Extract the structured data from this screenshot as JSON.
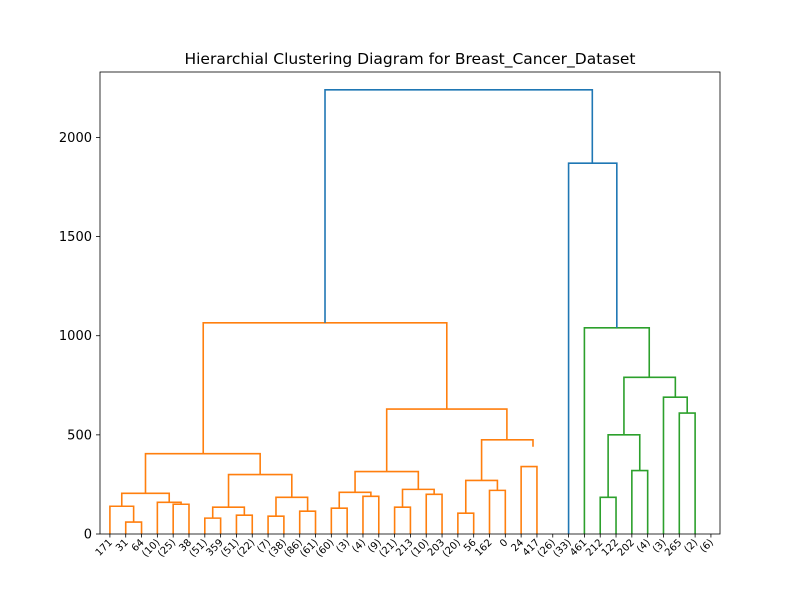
{
  "chart_data": {
    "type": "dendrogram",
    "title": "Hierarchial Clustering Diagram for Breast_Cancer_Dataset",
    "xlabel": "",
    "ylabel": "",
    "ylim": [
      0,
      2330
    ],
    "yticks": [
      0,
      500,
      1000,
      1500,
      2000
    ],
    "grid": false,
    "colors": {
      "cluster_1": "#ff7f0e",
      "cluster_2": "#2ca02c",
      "above_threshold": "#1f77b4"
    },
    "leaves": [
      "171",
      "31",
      "64",
      "(10)",
      "(25)",
      "38",
      "(51)",
      "359",
      "(51)",
      "(22)",
      "(7)",
      "(38)",
      "(86)",
      "(61)",
      "(60)",
      "(3)",
      "(4)",
      "(9)",
      "(21)",
      "213",
      "(10)",
      "203",
      "(20)",
      "56",
      "162",
      "0",
      "24",
      "417",
      "(26)",
      "(33)",
      "461",
      "212",
      "122",
      "202",
      "(4)",
      "(3)",
      "265",
      "(2)",
      "(6)"
    ],
    "links": [
      {
        "x": [
          0,
          1,
          1
        ],
        "left_h": 0,
        "right_h": 0,
        "h": 140,
        "c": "cluster_1"
      },
      {
        "x": [
          1,
          2
        ],
        "left_h": 0,
        "right_h": 0,
        "h": 60,
        "c": "cluster_1",
        "pair": true
      },
      {
        "x": [
          3,
          4
        ],
        "left_h": 0,
        "right_h": 0,
        "h": 125,
        "c": "cluster_1",
        "pair": true
      },
      {
        "x": [
          4,
          5
        ],
        "left_h": 0,
        "right_h": 0,
        "h": 150,
        "c": "cluster_1",
        "pair": true
      }
    ],
    "merges": [
      {
        "l": 1,
        "r": 2,
        "lh": 0,
        "rh": 0,
        "h": 60,
        "c": "cluster_1"
      },
      {
        "l": 0,
        "r": 1.5,
        "lh": 0,
        "rh": 60,
        "h": 140,
        "c": "cluster_1"
      },
      {
        "l": 3,
        "r": 4.5,
        "lh": 0,
        "rh": 0,
        "h": 125,
        "c": "cluster_1",
        "skip": true
      },
      {
        "l": 4,
        "r": 5,
        "lh": 0,
        "rh": 0,
        "h": 150,
        "c": "cluster_1"
      },
      {
        "l": 3,
        "r": 4.5,
        "lh": 0,
        "rh": 150,
        "h": 160,
        "c": "cluster_1"
      },
      {
        "l": 0.75,
        "r": 3.75,
        "lh": 140,
        "rh": 160,
        "h": 205,
        "c": "cluster_1"
      },
      {
        "l": 6,
        "r": 7,
        "lh": 0,
        "rh": 0,
        "h": 80,
        "c": "cluster_1"
      },
      {
        "l": 8,
        "r": 9,
        "lh": 0,
        "rh": 0,
        "h": 95,
        "c": "cluster_1"
      },
      {
        "l": 6.5,
        "r": 8.5,
        "lh": 80,
        "rh": 95,
        "h": 135,
        "c": "cluster_1"
      },
      {
        "l": 10,
        "r": 11,
        "lh": 0,
        "rh": 0,
        "h": 90,
        "c": "cluster_1"
      },
      {
        "l": 12,
        "r": 13,
        "lh": 0,
        "rh": 0,
        "h": 115,
        "c": "cluster_1"
      },
      {
        "l": 10.5,
        "r": 12.5,
        "lh": 90,
        "rh": 115,
        "h": 185,
        "c": "cluster_1"
      },
      {
        "l": 7.5,
        "r": 11.5,
        "lh": 135,
        "rh": 185,
        "h": 300,
        "c": "cluster_1"
      },
      {
        "l": 2.25,
        "r": 9.5,
        "lh": 205,
        "rh": 300,
        "h": 405,
        "c": "cluster_1"
      },
      {
        "l": 14,
        "r": 15,
        "lh": 0,
        "rh": 0,
        "h": 130,
        "c": "cluster_1"
      },
      {
        "l": 16,
        "r": 17,
        "lh": 0,
        "rh": 0,
        "h": 190,
        "c": "cluster_1"
      },
      {
        "l": 14.5,
        "r": 16.5,
        "lh": 130,
        "rh": 190,
        "h": 210,
        "c": "cluster_1"
      },
      {
        "l": 18,
        "r": 19,
        "lh": 0,
        "rh": 0,
        "h": 135,
        "c": "cluster_1"
      },
      {
        "l": 20,
        "r": 21,
        "lh": 0,
        "rh": 0,
        "h": 200,
        "c": "cluster_1"
      },
      {
        "l": 18.5,
        "r": 20.5,
        "lh": 135,
        "rh": 200,
        "h": 225,
        "c": "cluster_1"
      },
      {
        "l": 15.5,
        "r": 19.5,
        "lh": 210,
        "rh": 225,
        "h": 315,
        "c": "cluster_1"
      },
      {
        "l": 22,
        "r": 23,
        "lh": 0,
        "rh": 0,
        "h": 105,
        "c": "cluster_1"
      },
      {
        "l": 24,
        "r": 25,
        "lh": 0,
        "rh": 0,
        "h": 220,
        "c": "cluster_1"
      },
      {
        "l": 22.5,
        "r": 24.5,
        "lh": 105,
        "rh": 220,
        "h": 270,
        "c": "cluster_1"
      },
      {
        "l": 26,
        "r": 27,
        "lh": 0,
        "rh": 0,
        "h": 340,
        "c": "cluster_1"
      },
      {
        "l": 26,
        "r": 26.5,
        "lh": 0,
        "rh": 340,
        "h": 440,
        "c": "cluster_1",
        "skip": true
      },
      {
        "l": 23.5,
        "r": 26.75,
        "lh": 270,
        "rh": 440,
        "h": 475,
        "c": "cluster_1"
      },
      {
        "l": 17.5,
        "r": 25.1,
        "lh": 315,
        "rh": 475,
        "h": 630,
        "c": "cluster_1"
      },
      {
        "l": 5.9,
        "r": 21.3,
        "lh": 405,
        "rh": 630,
        "h": 1065,
        "c": "cluster_1"
      },
      {
        "l": 31,
        "r": 32,
        "lh": 0,
        "rh": 0,
        "h": 185,
        "c": "cluster_2"
      },
      {
        "l": 33,
        "r": 34,
        "lh": 0,
        "rh": 0,
        "h": 320,
        "c": "cluster_2"
      },
      {
        "l": 31.5,
        "r": 33.5,
        "lh": 185,
        "rh": 320,
        "h": 500,
        "c": "cluster_2"
      },
      {
        "l": 36,
        "r": 37,
        "lh": 0,
        "rh": 0,
        "h": 610,
        "c": "cluster_2"
      },
      {
        "l": 35,
        "r": 36.5,
        "lh": 0,
        "rh": 610,
        "h": 690,
        "c": "cluster_2"
      },
      {
        "l": 32.5,
        "r": 35.75,
        "lh": 500,
        "rh": 690,
        "h": 790,
        "c": "cluster_2"
      },
      {
        "l": 30,
        "r": 34.1,
        "lh": 0,
        "rh": 790,
        "h": 1040,
        "c": "cluster_2"
      },
      {
        "l": 29,
        "r": 32.05,
        "lh": 0,
        "rh": 1040,
        "h": 1870,
        "c": "above_threshold"
      },
      {
        "l": 13.6,
        "r": 30.5,
        "lh": 1065,
        "rh": 1870,
        "h": 2240,
        "c": "above_threshold"
      }
    ]
  }
}
